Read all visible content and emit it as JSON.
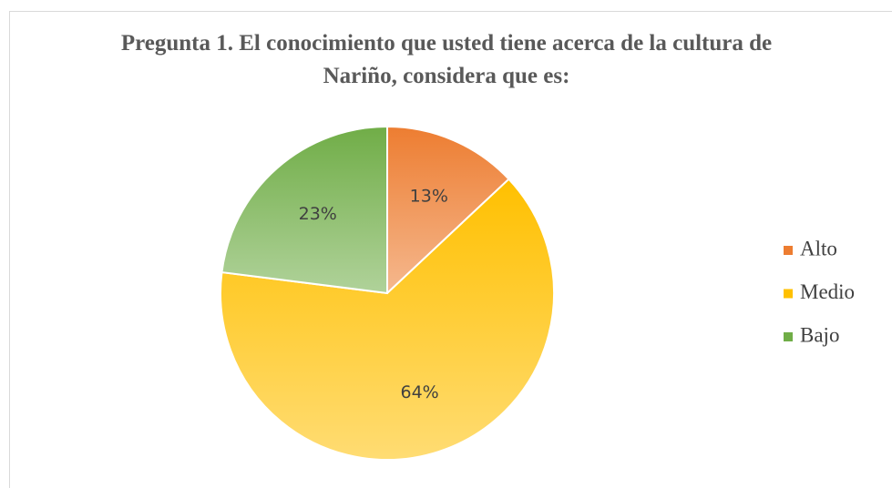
{
  "chart_data": {
    "type": "pie",
    "title": "Pregunta 1. El conocimiento que usted tiene acerca de la cultura de Nariño, considera que es:",
    "categories": [
      "Alto",
      "Medio",
      "Bajo"
    ],
    "values": [
      13,
      64,
      23
    ],
    "value_labels": [
      "13%",
      "64%",
      "23%"
    ],
    "colors": [
      "#ed7d31",
      "#ffc000",
      "#70ad47"
    ],
    "legend": "right"
  }
}
